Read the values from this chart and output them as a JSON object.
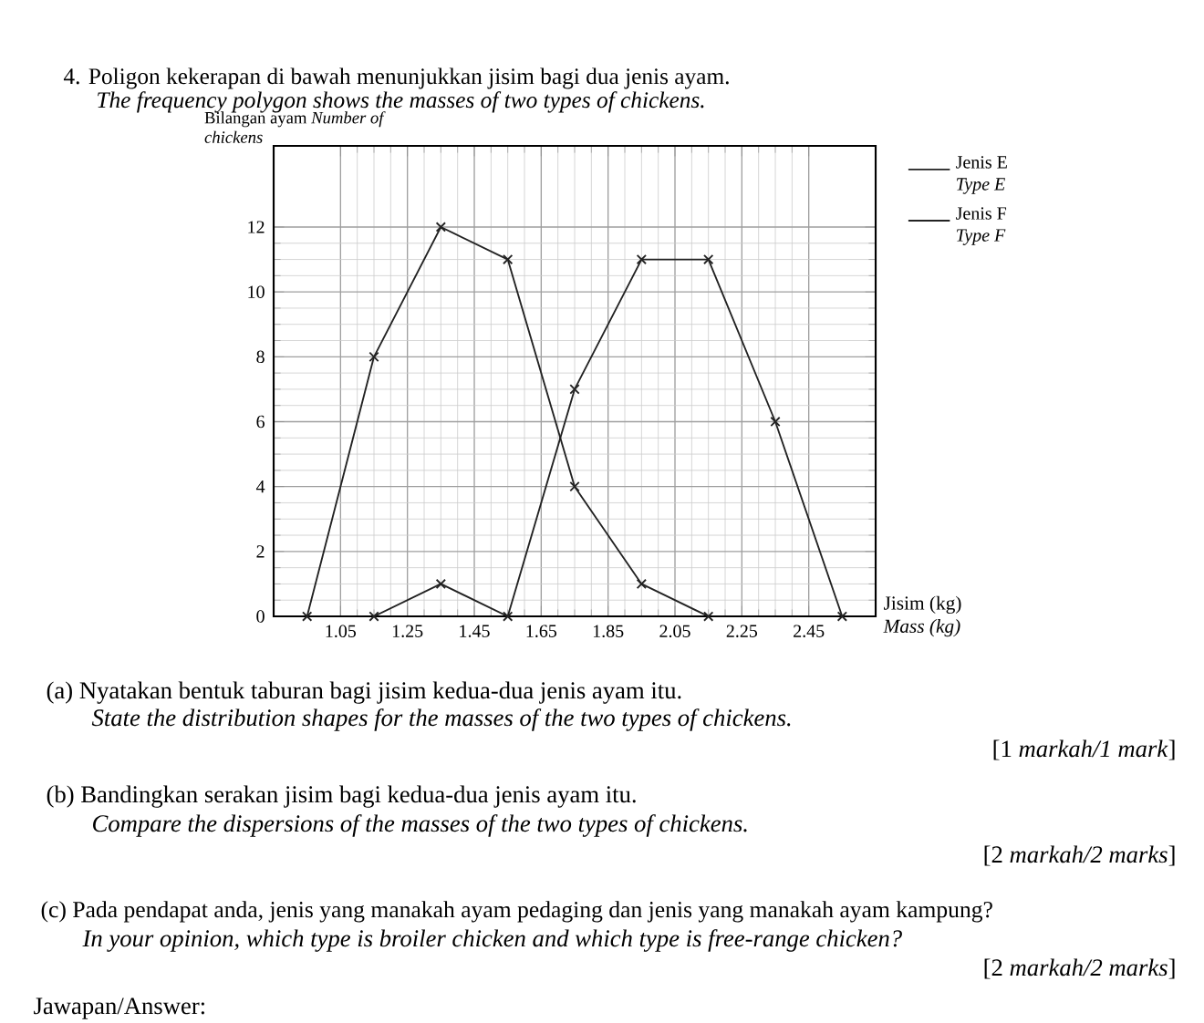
{
  "chart_data": {
    "type": "line",
    "title": "4. Poligon kekerapan di bawah menunjukkan jisim bagi dua jenis ayam.",
    "subtitle": "The frequency polygon shows the masses of two types of chickens.",
    "xlabel": "Jisim (kg) *Mass (kg)*",
    "ylabel": "Bilangan ayam *Number of chickens*",
    "series": [
      {
        "name": "Jenis E *Type E*",
        "color": "#222222",
        "x": [
          0.95,
          1.15,
          1.35,
          1.55,
          1.75,
          1.95,
          2.15
        ],
        "values": [
          0,
          8,
          12,
          11,
          4,
          1,
          0
        ]
      },
      {
        "name": "Jenis F *Type F*",
        "color": "#222222",
        "x": [
          1.15,
          1.35,
          1.55,
          1.75,
          1.95,
          2.15,
          2.35,
          2.55
        ],
        "values": [
          0,
          1,
          0,
          7,
          11,
          11,
          6,
          0
        ]
      }
    ],
    "xlim": [
      0.85,
      2.65
    ],
    "ylim": [
      0,
      14.5
    ],
    "xticks": [
      1.05,
      1.25,
      1.45,
      1.65,
      1.85,
      2.05,
      2.25,
      2.45
    ],
    "yticks": [
      0,
      2,
      4,
      6,
      8,
      10,
      12
    ],
    "grid": true,
    "legend": "right",
    "marker": "cross",
    "annotations": [
      "(a) Nyatakan bentuk taburan bagi jisim kedua-dua jenis ayam itu.",
      "State the distribution shapes for the masses of the two types of chickens.",
      "[1 *markah/1 mark*]",
      "(b) Bandingkan serakan jisim bagi kedua-dua jenis ayam itu.",
      "Compare the dispersions of the masses of the two types of chickens.",
      "[2 *markah/2 marks*]",
      "(c) Pada pendapat anda, jenis yang manakah ayam pedaging dan jenis yang manakah ayam kampung?",
      "In your opinion, which type is broiler chicken and which type is free-range chicken?",
      "[2 *markah/2 marks*]",
      "Jawapan/Answer:"
    ]
  }
}
